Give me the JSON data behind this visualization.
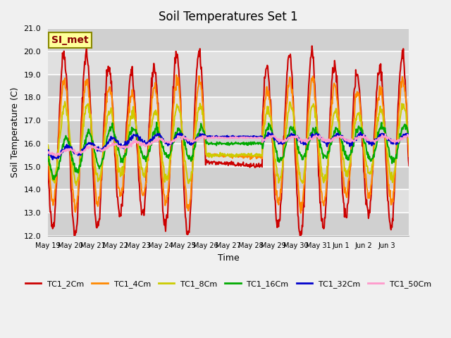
{
  "title": "Soil Temperatures Set 1",
  "xlabel": "Time",
  "ylabel": "Soil Temperature (C)",
  "ylim": [
    12.0,
    21.0
  ],
  "yticks": [
    12.0,
    13.0,
    14.0,
    15.0,
    16.0,
    17.0,
    18.0,
    19.0,
    20.0,
    21.0
  ],
  "xtick_labels": [
    "May 19",
    "May 20",
    "May 21",
    "May 22",
    "May 23",
    "May 24",
    "May 25",
    "May 26",
    "May 27",
    "May 28",
    "May 29",
    "May 30",
    "May 31",
    "Jun 1",
    "Jun 2",
    "Jun 3"
  ],
  "series_labels": [
    "TC1_2Cm",
    "TC1_4Cm",
    "TC1_8Cm",
    "TC1_16Cm",
    "TC1_32Cm",
    "TC1_50Cm"
  ],
  "series_colors": [
    "#cc0000",
    "#ff8800",
    "#cccc00",
    "#00aa00",
    "#0000cc",
    "#ff99cc"
  ],
  "annotation_text": "SI_met",
  "annotation_bg": "#ffff99",
  "annotation_border": "#888800",
  "line_width": 1.5
}
